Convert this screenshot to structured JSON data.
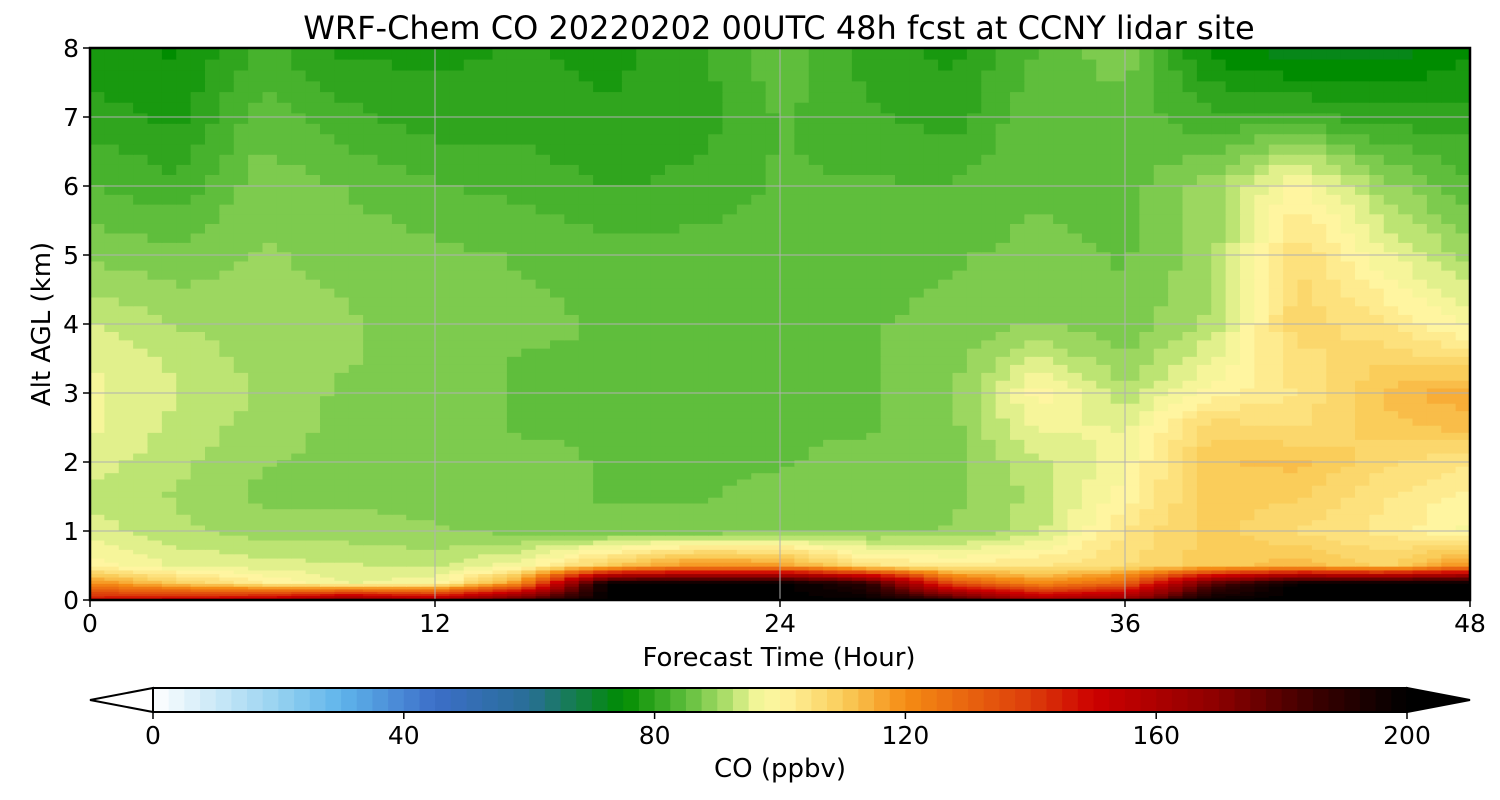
{
  "chart_data": {
    "type": "heatmap",
    "title": "WRF-Chem CO  20220202 00UTC 48h fcst at CCNY lidar site",
    "xlabel": "Forecast Time (Hour)",
    "ylabel": "Alt AGL (km)",
    "xlim": [
      0,
      48
    ],
    "ylim": [
      0,
      8
    ],
    "x_ticks": [
      "0",
      "12",
      "24",
      "36",
      "48"
    ],
    "y_ticks": [
      "0",
      "1",
      "2",
      "3",
      "4",
      "5",
      "6",
      "7",
      "8"
    ],
    "grid": true,
    "x": [
      0,
      3,
      6,
      9,
      12,
      15,
      18,
      21,
      24,
      27,
      30,
      33,
      36,
      39,
      42,
      45,
      48
    ],
    "y": [
      0.0,
      0.25,
      0.5,
      1,
      1.5,
      2,
      2.5,
      3,
      3.5,
      4,
      5,
      6,
      7,
      8
    ],
    "z": [
      [
        150,
        155,
        160,
        175,
        165,
        185,
        200,
        200,
        200,
        200,
        190,
        165,
        170,
        200,
        200,
        200,
        200
      ],
      [
        120,
        110,
        102,
        96,
        98,
        120,
        200,
        200,
        200,
        190,
        135,
        120,
        130,
        180,
        200,
        200,
        200
      ],
      [
        100,
        96,
        95,
        94,
        93,
        98,
        110,
        120,
        118,
        105,
        102,
        104,
        106,
        110,
        113,
        108,
        120
      ],
      [
        95,
        92,
        90,
        90,
        89,
        88,
        87,
        87,
        88,
        88,
        89,
        93,
        104,
        110,
        106,
        103,
        98
      ],
      [
        93,
        91,
        88,
        88,
        88,
        87,
        86,
        86,
        87,
        88,
        88,
        92,
        100,
        110,
        109,
        104,
        100
      ],
      [
        95,
        92,
        89,
        88,
        87,
        87,
        86,
        86,
        86,
        87,
        88,
        93,
        98,
        111,
        112,
        107,
        104
      ],
      [
        97,
        93,
        90,
        88,
        87,
        86,
        86,
        86,
        86,
        86,
        88,
        97,
        96,
        108,
        106,
        110,
        112
      ],
      [
        97,
        94,
        91,
        88,
        87,
        86,
        86,
        86,
        86,
        86,
        88,
        100,
        92,
        100,
        104,
        112,
        116
      ],
      [
        96,
        93,
        90,
        89,
        87,
        86,
        86,
        86,
        86,
        86,
        88,
        94,
        89,
        96,
        105,
        108,
        106
      ],
      [
        94,
        91,
        90,
        89,
        87,
        87,
        86,
        86,
        86,
        86,
        87,
        89,
        87,
        92,
        108,
        104,
        98
      ],
      [
        88,
        87,
        89,
        88,
        87,
        86,
        85,
        85,
        85,
        85,
        86,
        87,
        86,
        90,
        106,
        97,
        90
      ],
      [
        84,
        82,
        88,
        86,
        84,
        83,
        81,
        82,
        84,
        84,
        84,
        86,
        85,
        90,
        100,
        90,
        84
      ],
      [
        80,
        78,
        85,
        82,
        80,
        80,
        79,
        80,
        84,
        82,
        80,
        86,
        85,
        82,
        82,
        80,
        80
      ],
      [
        77,
        76,
        82,
        78,
        78,
        79,
        78,
        80,
        86,
        80,
        78,
        84,
        88,
        75,
        72,
        72,
        76
      ]
    ],
    "colorbar": {
      "label": "CO  (ppbv)",
      "min": 0,
      "max": 200,
      "ticks": [
        "0",
        "40",
        "80",
        "120",
        "160",
        "200"
      ],
      "extend": "both"
    }
  }
}
